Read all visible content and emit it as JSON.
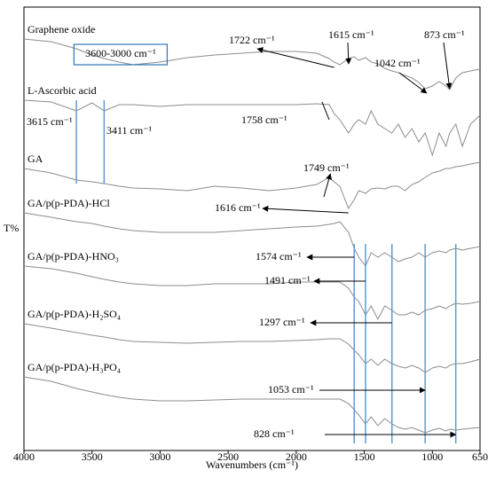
{
  "chart_data": {
    "type": "line",
    "xlabel": "Wavenumbers (cm⁻¹)",
    "ylabel": "T%",
    "xlim": [
      4000,
      650
    ],
    "ylim": [
      0,
      100
    ],
    "xticks": [
      4000,
      3500,
      3000,
      2500,
      2000,
      1500,
      1000,
      650
    ],
    "line_color": "#8c8c8c",
    "marker_color": "#5b9bd5",
    "x": [
      4000,
      3800,
      3615,
      3500,
      3411,
      3300,
      3200,
      3000,
      2800,
      2600,
      2400,
      2200,
      2000,
      1850,
      1758,
      1722,
      1680,
      1616,
      1574,
      1540,
      1491,
      1450,
      1400,
      1350,
      1297,
      1250,
      1200,
      1150,
      1100,
      1053,
      1000,
      950,
      900,
      873,
      828,
      780,
      720,
      650
    ],
    "series": [
      {
        "name": "Graphene oxide",
        "values": [
          92.8,
          92.2,
          90.6,
          89.2,
          88.4,
          87.6,
          87,
          87.6,
          88.6,
          89.2,
          89.6,
          90,
          90,
          89.6,
          88.4,
          87.6,
          87,
          88.4,
          88.8,
          88,
          88.6,
          87.6,
          87.2,
          86.2,
          85.6,
          85.2,
          84.6,
          84,
          83,
          81.6,
          82.2,
          83.2,
          82.2,
          81.4,
          84,
          85.2,
          85.6,
          86
        ]
      },
      {
        "name": "L-Ascorbic acid",
        "values": [
          79,
          78.6,
          76.6,
          78.4,
          76.6,
          78,
          78,
          77.6,
          78,
          78,
          78,
          78,
          78,
          78.2,
          78,
          76,
          74.6,
          71.6,
          73.6,
          74.6,
          73.6,
          76.6,
          73.6,
          72.6,
          71.6,
          73.6,
          70.6,
          72.6,
          69.6,
          71.6,
          66.6,
          71.6,
          68.6,
          71.6,
          73.6,
          68.6,
          73.6,
          75.6
        ]
      },
      {
        "name": "GA",
        "values": [
          63.6,
          62.6,
          61,
          60.6,
          60.2,
          59.6,
          59.2,
          59,
          58.6,
          59.6,
          59.2,
          58.6,
          59.2,
          60,
          61.6,
          60.6,
          59.6,
          54.6,
          56.6,
          58.6,
          58,
          59,
          59.2,
          59,
          59.6,
          59.6,
          58.6,
          60,
          60.6,
          61.6,
          62.6,
          63,
          63.6,
          63.6,
          64,
          64.2,
          64.6,
          65
        ]
      },
      {
        "name": "GA/p(p-PDA)-HCl",
        "values": [
          53.6,
          52.6,
          51.6,
          51.2,
          50.6,
          50,
          49.6,
          49.2,
          49.2,
          49.2,
          49.6,
          50,
          50.4,
          50.6,
          51,
          51.2,
          51.6,
          49.2,
          45.6,
          43.6,
          41.6,
          44.6,
          43.6,
          44.6,
          43.6,
          42.6,
          43.2,
          43.6,
          44.6,
          43.6,
          44.6,
          45,
          44.6,
          45.2,
          45.6,
          45.2,
          45.6,
          46
        ]
      },
      {
        "name": "GA/p(p-PDA)-HNO₃",
        "values": [
          41.6,
          41,
          40,
          39.2,
          38.6,
          38,
          37.6,
          37.2,
          37.2,
          37.6,
          37.6,
          37.6,
          38,
          38,
          38,
          38,
          38,
          36.6,
          34.6,
          33.6,
          30.6,
          32.6,
          29.6,
          32.6,
          31.6,
          30.6,
          30.6,
          31.2,
          30.6,
          31.6,
          32,
          32.6,
          32,
          32.6,
          33.2,
          33,
          33.2,
          33.6
        ]
      },
      {
        "name": "GA/p(p-PDA)-H₂SO₄",
        "values": [
          28.6,
          27.6,
          26.6,
          26,
          25.6,
          25,
          24.6,
          24.4,
          24.2,
          24.4,
          24.6,
          24.6,
          24.8,
          25,
          25.2,
          25.2,
          25.2,
          24,
          22.6,
          21.6,
          19.6,
          20.6,
          19.2,
          20.6,
          19.6,
          19,
          18.6,
          19.2,
          18.6,
          17.6,
          18.6,
          19,
          18.6,
          19.2,
          19.6,
          19.6,
          20,
          20.6
        ]
      },
      {
        "name": "GA/p(p-PDA)-H₃PO₄",
        "values": [
          16.6,
          15.6,
          14,
          13.2,
          12.6,
          12,
          11.6,
          11.2,
          11.2,
          11.4,
          11.6,
          11.6,
          11.6,
          11.6,
          11.6,
          11.6,
          11.6,
          10.6,
          9.2,
          8,
          6,
          7.6,
          5.6,
          7.2,
          6,
          5.2,
          4.8,
          5.2,
          4.6,
          4,
          4.6,
          5,
          4.4,
          4.8,
          4.6,
          4.8,
          5,
          5.2
        ]
      }
    ],
    "region": {
      "label": "3600-3000 cm⁻¹",
      "x": [
        3600,
        3000
      ]
    },
    "annotations": [
      {
        "label": "1722 cm⁻¹",
        "x": 1722
      },
      {
        "label": "1615 cm⁻¹",
        "x": 1615
      },
      {
        "label": "1042 cm⁻¹",
        "x": 1042
      },
      {
        "label": "873 cm⁻¹",
        "x": 873
      },
      {
        "label": "3615 cm⁻¹",
        "x": 3615
      },
      {
        "label": "3411 cm⁻¹",
        "x": 3411
      },
      {
        "label": "1758 cm⁻¹",
        "x": 1758
      },
      {
        "label": "1749 cm⁻¹",
        "x": 1749
      },
      {
        "label": "1616 cm⁻¹",
        "x": 1616
      },
      {
        "label": "1574 cm⁻¹",
        "x": 1574
      },
      {
        "label": "1491 cm⁻¹",
        "x": 1491
      },
      {
        "label": "1297 cm⁻¹",
        "x": 1297
      },
      {
        "label": "1053 cm⁻¹",
        "x": 1053
      },
      {
        "label": "828 cm⁻¹",
        "x": 828
      }
    ]
  }
}
